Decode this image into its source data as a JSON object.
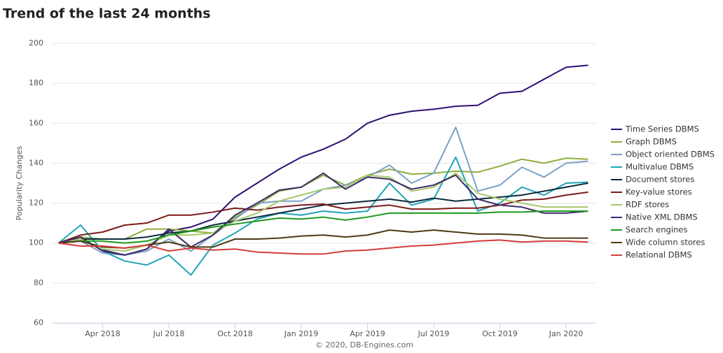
{
  "chart_data": {
    "type": "line",
    "title": "Trend of the last 24 months",
    "y_label": "Popularity Changes",
    "footer": "© 2020, DB-Engines.com",
    "categories": [
      null,
      null,
      "Apr 2018",
      null,
      null,
      "Jul 2018",
      null,
      null,
      "Oct 2018",
      null,
      null,
      "Jan 2019",
      null,
      null,
      "Apr 2019",
      null,
      null,
      "Jul 2019",
      null,
      null,
      "Oct 2019",
      null,
      null,
      "Jan 2020",
      null
    ],
    "ylim": [
      60,
      200
    ],
    "yticks": [
      60,
      80,
      100,
      120,
      140,
      160,
      180,
      200
    ],
    "grid": true,
    "legend": "right",
    "series": [
      {
        "name": "Time Series DBMS",
        "color": "#2e0f73",
        "values": [
          100,
          102,
          96.5,
          94,
          97,
          106,
          108,
          112,
          123,
          130,
          137,
          143,
          147,
          152,
          160,
          164,
          166,
          167,
          168.5,
          169,
          175,
          176,
          182,
          188,
          189
        ]
      },
      {
        "name": "Graph DBMS",
        "color": "#8fae3c",
        "values": [
          100,
          103,
          102,
          102,
          107,
          107,
          106,
          105,
          113,
          119,
          126,
          128,
          134,
          129,
          134,
          137,
          134.5,
          135,
          136,
          135.5,
          138.5,
          142,
          140,
          142.5,
          142
        ]
      },
      {
        "name": "Object oriented DBMS",
        "color": "#7ca0c8",
        "values": [
          100,
          101,
          95,
          94,
          96,
          102,
          96,
          104,
          112,
          120,
          121,
          121,
          127,
          129,
          133,
          139,
          130,
          135,
          158,
          126,
          129,
          138,
          133,
          140,
          141
        ]
      },
      {
        "name": "Multivalue DBMS",
        "color": "#21a3b8",
        "values": [
          100,
          109,
          96,
          91,
          89,
          94,
          84,
          99,
          105,
          112,
          115,
          114,
          116,
          115,
          116,
          130,
          119,
          122,
          143,
          116,
          120,
          128,
          124,
          130,
          130.5
        ]
      },
      {
        "name": "Document stores",
        "color": "#0d2a3c",
        "values": [
          100,
          102,
          102,
          102,
          103,
          105,
          106,
          109,
          111,
          113,
          115,
          117,
          119,
          120,
          121,
          122,
          120.5,
          122.5,
          121,
          122,
          123,
          124,
          126,
          128,
          130
        ]
      },
      {
        "name": "Key-value stores",
        "color": "#7b1a1a",
        "values": [
          100,
          104,
          105.5,
          109,
          110,
          114,
          114,
          115.5,
          117.5,
          116.5,
          118,
          119,
          119.5,
          117,
          118,
          119,
          117,
          117,
          117.5,
          117.5,
          119,
          121.5,
          122,
          124,
          125.5
        ]
      },
      {
        "name": "RDF stores",
        "color": "#a8c86a",
        "values": [
          100,
          102,
          97,
          96,
          99,
          104,
          104,
          105,
          111,
          115,
          121,
          124,
          127,
          128,
          134,
          133,
          126,
          128,
          135,
          125,
          122,
          120,
          118,
          118,
          118
        ]
      },
      {
        "name": "Native XML DBMS",
        "color": "#3d2b6b",
        "values": [
          100,
          103,
          96,
          94,
          97,
          107,
          98,
          104,
          114,
          120,
          126.5,
          128,
          135,
          127,
          133,
          132,
          127,
          129,
          134,
          122,
          119,
          118,
          115,
          115,
          116
        ]
      },
      {
        "name": "Search engines",
        "color": "#1c9b1c",
        "values": [
          100,
          101,
          101,
          100,
          101,
          104,
          106,
          108,
          109.5,
          111,
          112.5,
          112,
          113,
          111.5,
          113,
          115,
          115,
          115,
          115,
          115,
          115.5,
          115.5,
          116,
          116,
          116
        ]
      },
      {
        "name": "Wide column stores",
        "color": "#4e3a14",
        "values": [
          100,
          101,
          98,
          97.5,
          99,
          100.5,
          98,
          98,
          102,
          102,
          102.5,
          103.5,
          104,
          103,
          104,
          106.5,
          105.5,
          106.5,
          105.5,
          104.5,
          104.5,
          104,
          102.5,
          102.5,
          102.5
        ]
      },
      {
        "name": "Relational DBMS",
        "color": "#d43c3c",
        "values": [
          100,
          98.5,
          98.5,
          97.5,
          99,
          96,
          97.5,
          96.5,
          97,
          95.5,
          95,
          94.5,
          94.5,
          96,
          96.5,
          97.5,
          98.5,
          99,
          100,
          101,
          101.5,
          100.5,
          101,
          101,
          100.5
        ]
      }
    ]
  }
}
